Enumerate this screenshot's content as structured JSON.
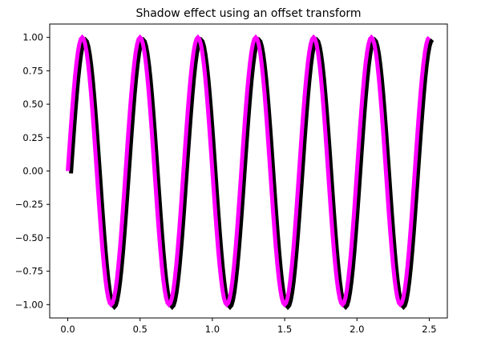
{
  "chart_data": {
    "type": "line",
    "title": "Shadow effect using an offset transform",
    "xlabel": "",
    "ylabel": "",
    "xlim": [
      -0.125,
      2.625
    ],
    "ylim": [
      -1.1,
      1.1
    ],
    "x_ticks": [
      0.0,
      0.5,
      1.0,
      1.5,
      2.0,
      2.5
    ],
    "x_tick_labels": [
      "0.0",
      "0.5",
      "1.0",
      "1.5",
      "2.0",
      "2.5"
    ],
    "y_ticks": [
      1.0,
      0.75,
      0.5,
      0.25,
      0.0,
      -0.25,
      -0.5,
      -0.75,
      -1.0
    ],
    "y_tick_labels": [
      "1.00",
      "0.75",
      "0.50",
      "0.25",
      "0.00",
      "−0.25",
      "−0.50",
      "−0.75",
      "−1.00"
    ],
    "series": [
      {
        "function": "y = sin(2*pi*2.5*x)",
        "x_start": 0.0,
        "x_end": 2.5,
        "step": 0.01,
        "color": "#ff00ff",
        "shadow_color": "#000000"
      }
    ]
  }
}
